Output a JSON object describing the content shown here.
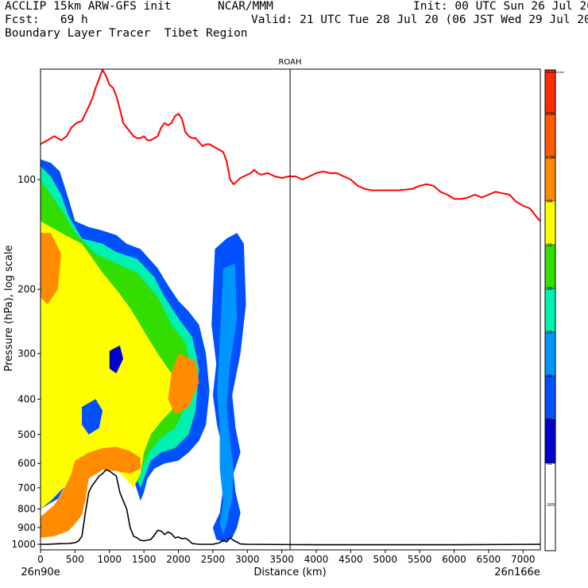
{
  "header": {
    "line1_left": "ACCLIP 15km ARW-GFS init",
    "line1_center": "NCAR/MMM",
    "line1_right": "Init: 00 UTC Sun 26 Jul 20",
    "line2_left": "Fcst:   69 h",
    "line2_right": "Valid: 21 UTC Tue 28 Jul 20 (06 JST Wed 29 Jul 20)",
    "line3_left": "Boundary Layer Tracer  Tibet Region"
  },
  "chart_data": {
    "type": "cross-section",
    "title": "ROAH",
    "xlabel": "Distance (km)",
    "ylabel": "Pressure (hPa), log scale",
    "x_range": [
      0,
      7250
    ],
    "x_ticks": [
      0,
      500,
      1000,
      1500,
      2000,
      2500,
      3000,
      3500,
      4000,
      4500,
      5000,
      5500,
      6000,
      6500,
      7000
    ],
    "y_scale": "log",
    "y_ticks": [
      100,
      200,
      300,
      400,
      500,
      600,
      700,
      800,
      900,
      1000
    ],
    "left_endpoint_label": "26n90e",
    "right_endpoint_label": "26n166e",
    "vertical_marker_x": 3620,
    "legend": {
      "labels": [
        "Dimensionless",
        "2.56",
        "1.28",
        ".64",
        ".32",
        ".16",
        ".08",
        ".04",
        ".02",
        ".01",
        ".005"
      ],
      "colors": [
        "#ff2a00",
        "#ff5a00",
        "#ff8c00",
        "#ffff00",
        "#33dd00",
        "#00f0b0",
        "#0096ff",
        "#0050ff",
        "#0000cd",
        "#ffffff"
      ]
    },
    "series": [
      {
        "name": "tropopause",
        "color": "#ff0000",
        "points": [
          [
            0,
            80
          ],
          [
            100,
            78
          ],
          [
            200,
            76
          ],
          [
            300,
            78
          ],
          [
            380,
            76
          ],
          [
            450,
            72
          ],
          [
            520,
            70
          ],
          [
            600,
            69
          ],
          [
            650,
            66
          ],
          [
            700,
            63
          ],
          [
            750,
            60
          ],
          [
            800,
            56
          ],
          [
            850,
            53
          ],
          [
            900,
            50
          ],
          [
            950,
            52
          ],
          [
            1000,
            55
          ],
          [
            1050,
            56
          ],
          [
            1100,
            59
          ],
          [
            1150,
            64
          ],
          [
            1200,
            70
          ],
          [
            1250,
            72
          ],
          [
            1300,
            74
          ],
          [
            1350,
            76
          ],
          [
            1400,
            77
          ],
          [
            1450,
            77
          ],
          [
            1500,
            76
          ],
          [
            1550,
            78
          ],
          [
            1600,
            78
          ],
          [
            1650,
            77
          ],
          [
            1700,
            76
          ],
          [
            1750,
            72
          ],
          [
            1800,
            70
          ],
          [
            1850,
            71
          ],
          [
            1900,
            70
          ],
          [
            1950,
            67
          ],
          [
            2000,
            66
          ],
          [
            2050,
            68
          ],
          [
            2100,
            74
          ],
          [
            2150,
            76
          ],
          [
            2200,
            77
          ],
          [
            2250,
            77
          ],
          [
            2300,
            79
          ],
          [
            2350,
            81
          ],
          [
            2400,
            80
          ],
          [
            2450,
            80
          ],
          [
            2500,
            81
          ],
          [
            2550,
            82
          ],
          [
            2600,
            83
          ],
          [
            2650,
            84
          ],
          [
            2700,
            89
          ],
          [
            2750,
            100
          ],
          [
            2800,
            103
          ],
          [
            2850,
            101
          ],
          [
            2900,
            99
          ],
          [
            2950,
            98
          ],
          [
            3000,
            97
          ],
          [
            3050,
            96
          ],
          [
            3100,
            94
          ],
          [
            3150,
            96
          ],
          [
            3200,
            97
          ],
          [
            3300,
            96
          ],
          [
            3400,
            98
          ],
          [
            3500,
            99
          ],
          [
            3600,
            98
          ],
          [
            3700,
            98
          ],
          [
            3800,
            100
          ],
          [
            3900,
            98
          ],
          [
            4000,
            96
          ],
          [
            4100,
            95
          ],
          [
            4200,
            96
          ],
          [
            4300,
            96
          ],
          [
            4400,
            98
          ],
          [
            4500,
            100
          ],
          [
            4600,
            104
          ],
          [
            4700,
            106
          ],
          [
            4800,
            107
          ],
          [
            5000,
            107
          ],
          [
            5200,
            107
          ],
          [
            5400,
            106
          ],
          [
            5500,
            104
          ],
          [
            5600,
            103
          ],
          [
            5700,
            104
          ],
          [
            5800,
            108
          ],
          [
            5900,
            110
          ],
          [
            6000,
            113
          ],
          [
            6100,
            113
          ],
          [
            6200,
            112
          ],
          [
            6300,
            110
          ],
          [
            6400,
            112
          ],
          [
            6500,
            110
          ],
          [
            6600,
            108
          ],
          [
            6700,
            109
          ],
          [
            6800,
            110
          ],
          [
            6900,
            115
          ],
          [
            7000,
            118
          ],
          [
            7100,
            120
          ],
          [
            7200,
            127
          ],
          [
            7250,
            130
          ]
        ]
      },
      {
        "name": "terrain",
        "color": "#000000",
        "points": [
          [
            0,
            1000
          ],
          [
            100,
            1000
          ],
          [
            200,
            998
          ],
          [
            300,
            996
          ],
          [
            400,
            995
          ],
          [
            450,
            993
          ],
          [
            500,
            990
          ],
          [
            550,
            980
          ],
          [
            600,
            950
          ],
          [
            650,
            820
          ],
          [
            700,
            720
          ],
          [
            750,
            690
          ],
          [
            800,
            670
          ],
          [
            850,
            650
          ],
          [
            900,
            640
          ],
          [
            950,
            625
          ],
          [
            1000,
            630
          ],
          [
            1050,
            640
          ],
          [
            1100,
            650
          ],
          [
            1150,
            720
          ],
          [
            1200,
            760
          ],
          [
            1250,
            800
          ],
          [
            1300,
            900
          ],
          [
            1350,
            950
          ],
          [
            1400,
            960
          ],
          [
            1450,
            975
          ],
          [
            1500,
            978
          ],
          [
            1600,
            970
          ],
          [
            1650,
            945
          ],
          [
            1700,
            915
          ],
          [
            1750,
            920
          ],
          [
            1800,
            940
          ],
          [
            1850,
            925
          ],
          [
            1900,
            935
          ],
          [
            1950,
            960
          ],
          [
            2000,
            955
          ],
          [
            2050,
            965
          ],
          [
            2100,
            962
          ],
          [
            2150,
            975
          ],
          [
            2200,
            995
          ],
          [
            2300,
            1000
          ],
          [
            2500,
            1000
          ],
          [
            2600,
            990
          ],
          [
            2650,
            975
          ],
          [
            2700,
            985
          ],
          [
            2750,
            960
          ],
          [
            2800,
            975
          ],
          [
            2900,
            998
          ],
          [
            3000,
            1000
          ],
          [
            4000,
            1003
          ],
          [
            5500,
            1003
          ],
          [
            6000,
            1003
          ],
          [
            7250,
            1000
          ]
        ]
      }
    ],
    "grid": false
  }
}
